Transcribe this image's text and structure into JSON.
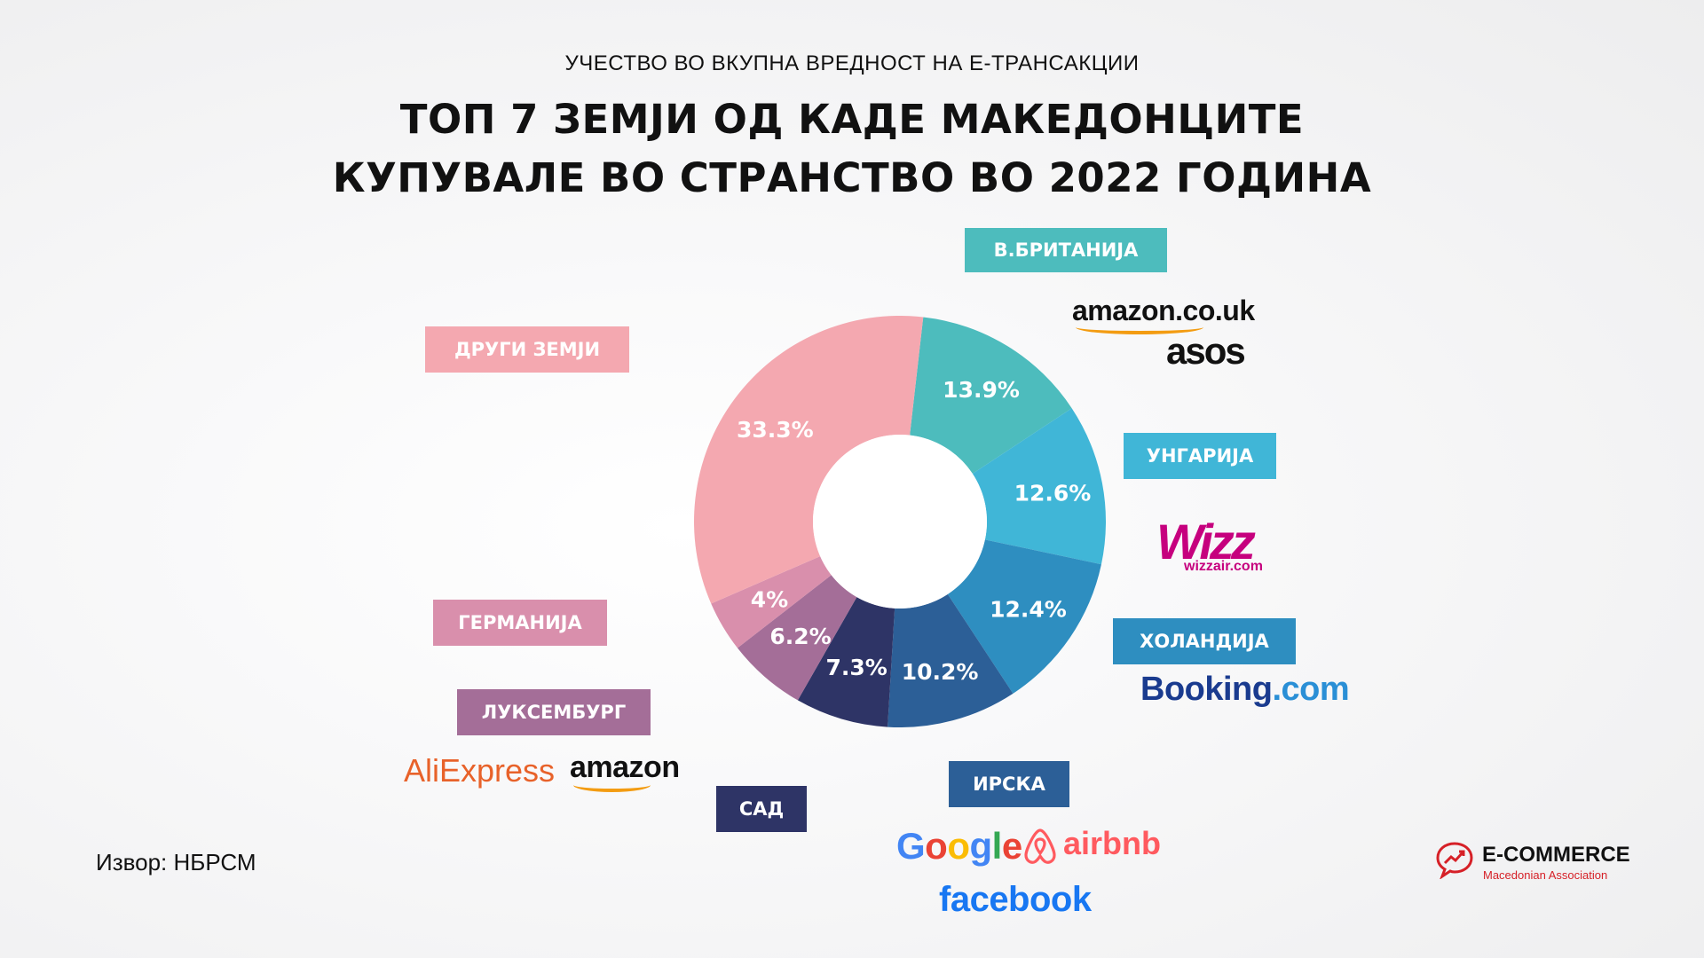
{
  "subtitle": "УЧЕСТВО ВО ВКУПНА ВРЕДНОСТ НА Е-ТРАНСАКЦИИ",
  "title_line1": "ТОП 7 ЗЕМЈИ ОД КАДЕ МАКЕДОНЦИТЕ",
  "title_line2": "КУПУВАЛЕ ВО СТРАНСТВО ВО 2022 ГОДИНА",
  "source": "Извор: НБРСМ",
  "chart_data": {
    "type": "pie",
    "title": "ТОП 7 ЗЕМЈИ ОД КАДЕ МАКЕДОНЦИТЕ КУПУВАЛЕ ВО СТРАНСТВО ВО 2022 ГОДИНА",
    "subtitle": "УЧЕСТВО ВО ВКУПНА ВРЕДНОСТ НА Е-ТРАНСАКЦИИ",
    "unit": "%",
    "donut": true,
    "categories": [
      "В.БРИТАНИЈА",
      "УНГАРИЈА",
      "ХОЛАНДИЈА",
      "ИРСКА",
      "САД",
      "ЛУКСЕМБУРГ",
      "ГЕРМАНИЈА",
      "ДРУГИ ЗЕМЈИ"
    ],
    "values": [
      13.9,
      12.6,
      12.4,
      10.2,
      7.3,
      6.2,
      4,
      33.3
    ],
    "value_labels": [
      "13.9%",
      "12.6%",
      "12.4%",
      "10.2%",
      "7.3%",
      "6.2%",
      "4%",
      "33.3%"
    ],
    "colors": [
      "#4dbcbd",
      "#40b6d7",
      "#2e8ec0",
      "#2c5f97",
      "#2e3466",
      "#a46e98",
      "#d98fac",
      "#f4a8b0"
    ]
  },
  "brands": {
    "uk_amazon": "amazon.co.uk",
    "uk_asos": "asos",
    "hu_wizz": "Wizz",
    "hu_wizz_site": "wizzair.com",
    "nl_booking": "Booking",
    "nl_booking_dot": ".com",
    "ie_google": "Google",
    "ie_airbnb": "airbnb",
    "ie_facebook": "facebook",
    "lu_aliexpress": "AliExpress",
    "lu_amazon": "amazon"
  },
  "association": {
    "name": "E-COMMERCE",
    "sub": "Macedonian Association",
    "accent": "#d62027"
  }
}
